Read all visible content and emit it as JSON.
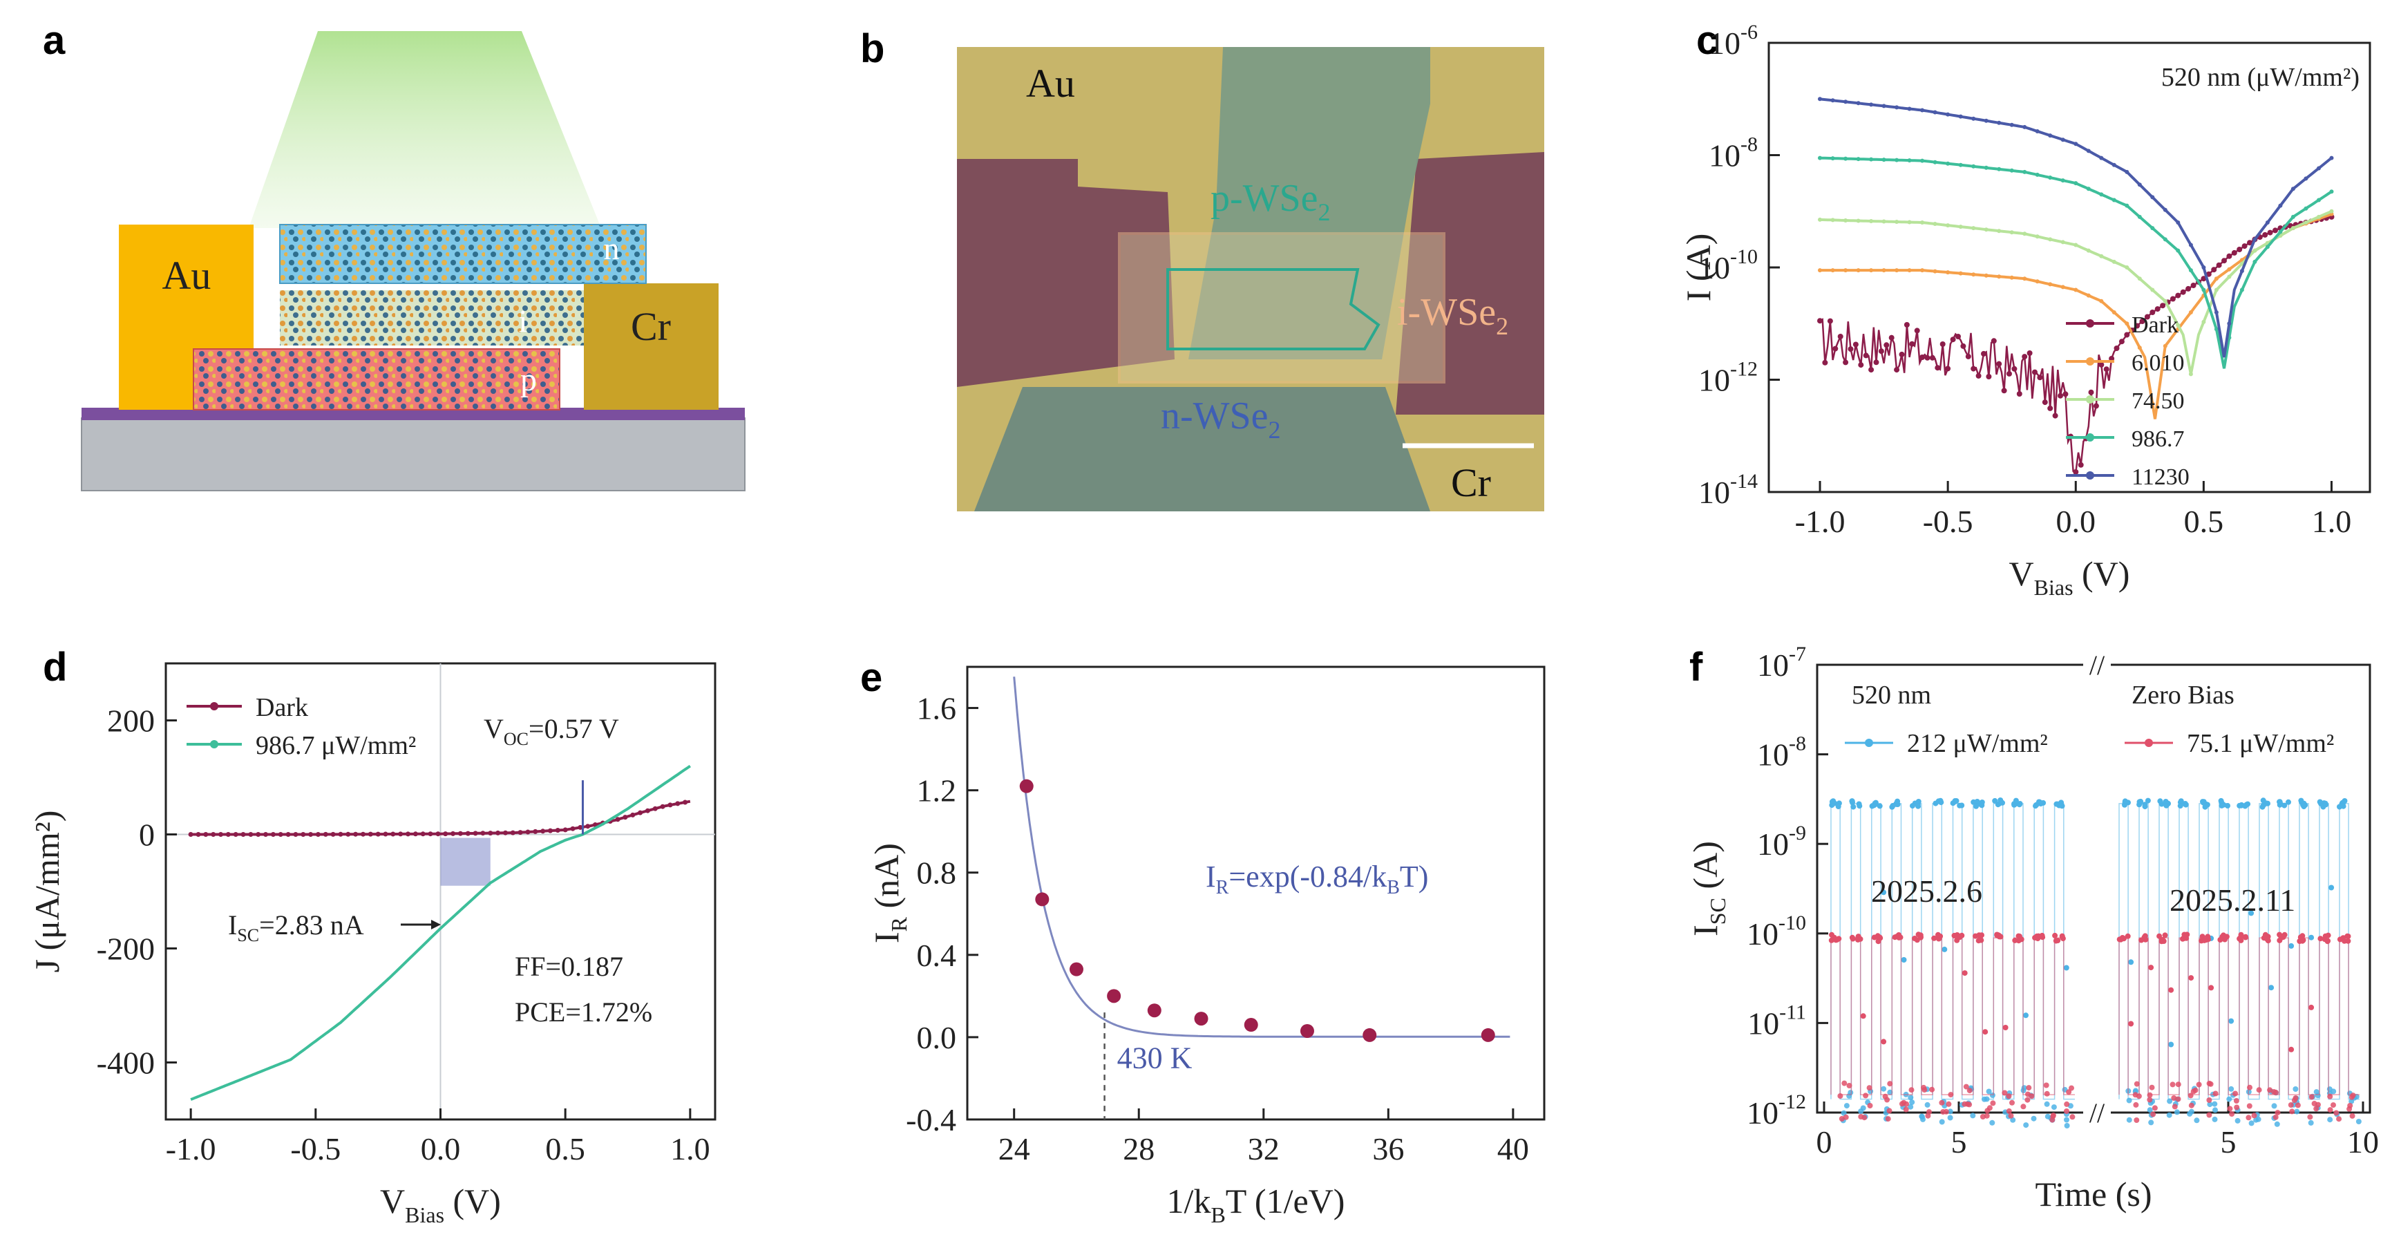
{
  "panel_labels": [
    "a",
    "b",
    "c",
    "d",
    "e",
    "f"
  ],
  "panel_a": {
    "contact_left": "Au",
    "contact_right": "Cr",
    "layer_n": "n",
    "layer_i": "i",
    "layer_p": "p",
    "colors": {
      "au": "#F9B800",
      "cr": "#C9A227",
      "substrate": "#B9BDC2",
      "oxide": "#7B4F9E",
      "beam": "#9EDB7A"
    }
  },
  "panel_b": {
    "label_au": "Au",
    "label_p": "p-WSe",
    "label_i": "i-WSe",
    "label_n": "n-WSe",
    "sub_2": "2",
    "label_cr": "Cr"
  },
  "panel_c": {
    "chart_data": {
      "type": "line",
      "ylabel": "I (A)",
      "xlabel_main": "V",
      "xlabel_sub": "Bias",
      "xlabel_unit": " (V)",
      "annotation": "520 nm (μW/mm²)",
      "yscale": "log",
      "ylim_exp": [
        -14,
        -6
      ],
      "xlim": [
        -1.2,
        1.15
      ],
      "xticks": [
        "-1.0",
        "-0.5",
        "0.0",
        "0.5",
        "1.0"
      ],
      "xtick_values": [
        -1.0,
        -0.5,
        0.0,
        0.5,
        1.0
      ],
      "ytick_exp": [
        -14,
        -12,
        -10,
        -8,
        -6
      ],
      "ytick_base": "10",
      "series": [
        {
          "name": "Dark",
          "color": "#8C1D4A",
          "x": [
            -1.0,
            -0.8,
            -0.6,
            -0.4,
            -0.2,
            -0.05,
            0.0,
            0.1,
            0.2,
            0.3,
            0.4,
            0.5,
            0.6,
            0.7,
            0.8,
            0.9,
            1.0
          ],
          "log10I": [
            -11.3,
            -11.4,
            -11.5,
            -11.6,
            -11.9,
            -12.3,
            -13.4,
            -11.8,
            -11.2,
            -10.8,
            -10.5,
            -10.2,
            -9.8,
            -9.5,
            -9.3,
            -9.2,
            -9.1
          ]
        },
        {
          "name": "6.010",
          "color": "#F5A04A",
          "x": [
            -1.0,
            -0.6,
            -0.2,
            0.0,
            0.1,
            0.2,
            0.27,
            0.31,
            0.35,
            0.45,
            0.55,
            0.7,
            0.85,
            1.0
          ],
          "log10I": [
            -10.05,
            -10.05,
            -10.2,
            -10.4,
            -10.6,
            -11.0,
            -11.6,
            -12.7,
            -11.4,
            -10.8,
            -10.2,
            -9.7,
            -9.3,
            -9.05
          ]
        },
        {
          "name": "74.50",
          "color": "#B7E39A",
          "x": [
            -1.0,
            -0.6,
            -0.2,
            0.0,
            0.2,
            0.35,
            0.42,
            0.45,
            0.48,
            0.55,
            0.7,
            0.85,
            1.0
          ],
          "log10I": [
            -9.15,
            -9.2,
            -9.4,
            -9.6,
            -10.0,
            -10.6,
            -11.2,
            -11.9,
            -11.2,
            -10.4,
            -9.7,
            -9.3,
            -9.0
          ]
        },
        {
          "name": "986.7",
          "color": "#3DBE9A",
          "x": [
            -1.0,
            -0.6,
            -0.2,
            0.0,
            0.2,
            0.4,
            0.5,
            0.55,
            0.58,
            0.62,
            0.7,
            0.85,
            1.0
          ],
          "log10I": [
            -8.05,
            -8.1,
            -8.3,
            -8.5,
            -8.9,
            -9.7,
            -10.4,
            -11.1,
            -11.8,
            -10.7,
            -9.9,
            -9.1,
            -8.65
          ]
        },
        {
          "name": "11230",
          "color": "#4A5AA8",
          "x": [
            -1.0,
            -0.6,
            -0.2,
            0.0,
            0.2,
            0.4,
            0.5,
            0.55,
            0.58,
            0.62,
            0.7,
            0.85,
            1.0
          ],
          "log10I": [
            -7.0,
            -7.2,
            -7.5,
            -7.8,
            -8.3,
            -9.2,
            -10.0,
            -10.8,
            -11.6,
            -10.4,
            -9.5,
            -8.6,
            -8.05
          ]
        }
      ]
    }
  },
  "panel_d": {
    "chart_data": {
      "type": "line",
      "ylabel": "J  (μA/mm²)",
      "xlabel_main": "V",
      "xlabel_sub": "Bias",
      "xlabel_unit": " (V)",
      "xlim": [
        -1.1,
        1.1
      ],
      "ylim": [
        -500,
        300
      ],
      "xticks": [
        "-1.0",
        "-0.5",
        "0.0",
        "0.5",
        "1.0"
      ],
      "xtick_values": [
        -1.0,
        -0.5,
        0.0,
        0.5,
        1.0
      ],
      "yticks": [
        "-400",
        "-200",
        "0",
        "200"
      ],
      "ytick_values": [
        -400,
        -200,
        0,
        200
      ],
      "voc_main": "V",
      "voc_sub": "OC",
      "voc_value": "=0.57 V",
      "isc_main": "I",
      "isc_sub": "SC",
      "isc_value": "=2.83 nA",
      "ff": "FF=0.187",
      "pce": "PCE=1.72%",
      "series": [
        {
          "name": "Dark",
          "color": "#8C1D4A",
          "x": [
            -1.0,
            -0.5,
            0.0,
            0.3,
            0.5,
            0.6,
            0.7,
            0.8,
            0.9,
            1.0
          ],
          "y": [
            0,
            0,
            1,
            3,
            8,
            15,
            25,
            38,
            50,
            58
          ]
        },
        {
          "name": "986.7 μW/mm²",
          "color": "#3DBE9A",
          "x": [
            -1.0,
            -0.8,
            -0.6,
            -0.4,
            -0.2,
            0.0,
            0.2,
            0.4,
            0.5,
            0.57,
            0.65,
            0.75,
            0.85,
            1.0
          ],
          "y": [
            -465,
            -430,
            -395,
            -330,
            -250,
            -165,
            -85,
            -30,
            -10,
            0,
            18,
            45,
            75,
            120
          ]
        }
      ]
    }
  },
  "panel_e": {
    "chart_data": {
      "type": "scatter",
      "ylabel_main": "I",
      "ylabel_sub": "R",
      "ylabel_unit": " (nA)",
      "xlabel_main": "1/k",
      "xlabel_sub": "B",
      "xlabel_unit": "T (1/eV)",
      "xlim": [
        22.5,
        41
      ],
      "ylim": [
        -0.4,
        1.8
      ],
      "xticks": [
        "24",
        "28",
        "32",
        "36",
        "40"
      ],
      "xtick_values": [
        24,
        28,
        32,
        36,
        40
      ],
      "yticks": [
        "-0.4",
        "0.0",
        "0.4",
        "0.8",
        "1.2",
        "1.6"
      ],
      "ytick_values": [
        -0.4,
        0.0,
        0.4,
        0.8,
        1.2,
        1.6
      ],
      "fit_main": "I",
      "fit_sub": "R",
      "fit_eq": "=exp(-0.84/k",
      "fit_sub2": "B",
      "fit_end": "T)",
      "temp_label": "430 K",
      "temp_x": 26.9,
      "points": {
        "x": [
          24.4,
          24.9,
          26.0,
          27.2,
          28.5,
          30.0,
          31.6,
          33.4,
          35.4,
          39.2
        ],
        "y": [
          1.22,
          0.67,
          0.33,
          0.2,
          0.13,
          0.09,
          0.06,
          0.03,
          0.01,
          0.01
        ]
      },
      "fit_color": "#7E88C0",
      "point_color": "#9E1F4B"
    }
  },
  "panel_f": {
    "chart_data": {
      "type": "scatter",
      "ylabel_main": "I",
      "ylabel_sub": "SC",
      "ylabel_unit": " (A)",
      "xlabel": "Time (s)",
      "yscale": "log",
      "ylim_exp": [
        -12,
        -7
      ],
      "ytick_exp": [
        -12,
        -11,
        -10,
        -9,
        -8,
        -7
      ],
      "ytick_base": "10",
      "xticks": [
        "0",
        "5",
        "5",
        "10"
      ],
      "wavelength": "520 nm",
      "bias": "Zero Bias",
      "series": [
        {
          "name": "212 μW/mm²",
          "color": "#4DB3E6",
          "on_log10": -8.55,
          "off_log10": -11.85
        },
        {
          "name": "75.1  μW/mm²",
          "color": "#E0506A",
          "on_log10": -10.05,
          "off_log10": -11.8
        }
      ],
      "date_left": "2025.2.6",
      "date_right": "2025.2.11",
      "break_mark": "//"
    }
  }
}
